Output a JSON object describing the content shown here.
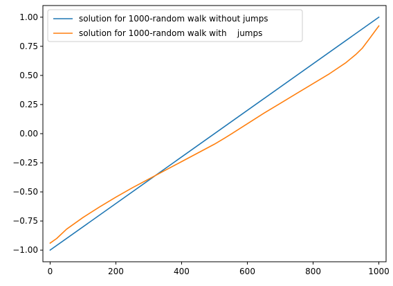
{
  "chart_data": {
    "type": "line",
    "title": "",
    "xlabel": "",
    "ylabel": "",
    "xlim": [
      -22,
      1022
    ],
    "ylim": [
      -1.1,
      1.1
    ],
    "x_ticks": [
      0,
      200,
      400,
      600,
      800,
      1000
    ],
    "x_tick_labels": [
      "0",
      "200",
      "400",
      "600",
      "800",
      "1000"
    ],
    "y_ticks": [
      -1.0,
      -0.75,
      -0.5,
      -0.25,
      0.0,
      0.25,
      0.5,
      0.75,
      1.0
    ],
    "y_tick_labels": [
      "−1.00",
      "−0.75",
      "−0.50",
      "−0.25",
      "0.00",
      "0.25",
      "0.50",
      "0.75",
      "1.00"
    ],
    "grid": false,
    "legend_position": "top-left",
    "series": [
      {
        "name": "solution for 1000-random walk without jumps",
        "color": "#1f77b4",
        "x": [
          0,
          1000
        ],
        "y": [
          -1.0,
          1.0
        ]
      },
      {
        "name": "solution for 1000-random walk with    jumps",
        "color": "#ff7f0e",
        "x": [
          0,
          20,
          50,
          100,
          150,
          200,
          250,
          300,
          350,
          400,
          450,
          500,
          530,
          550,
          600,
          650,
          700,
          750,
          800,
          850,
          900,
          930,
          950,
          970,
          1000
        ],
        "y": [
          -0.94,
          -0.9,
          -0.82,
          -0.72,
          -0.63,
          -0.545,
          -0.465,
          -0.39,
          -0.315,
          -0.24,
          -0.165,
          -0.09,
          -0.04,
          -0.005,
          0.085,
          0.175,
          0.26,
          0.345,
          0.43,
          0.515,
          0.61,
          0.68,
          0.735,
          0.81,
          0.925
        ]
      }
    ]
  }
}
